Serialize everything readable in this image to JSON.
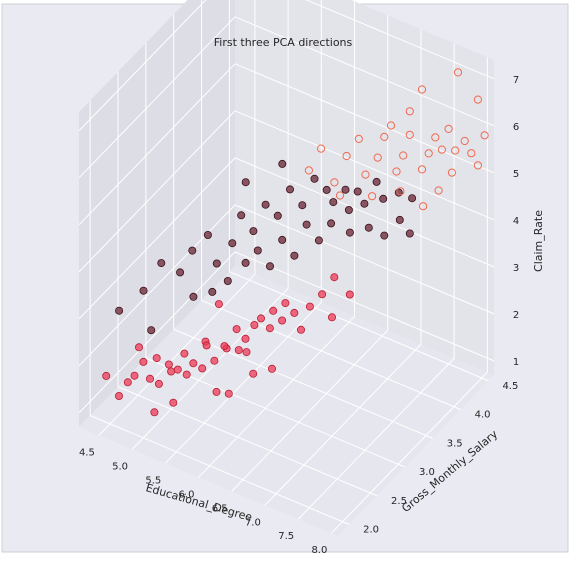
{
  "chart_data": {
    "type": "scatter",
    "title": "First three PCA directions",
    "xlabel": "Educational_Degree",
    "ylabel": "Gross_Monthly_Salary",
    "zlabel": "Claim_Rate",
    "xticks": [
      "4.5",
      "5.0",
      "5.5",
      "6.0",
      "6.5",
      "7.0",
      "7.5",
      "8.0"
    ],
    "yticks": [
      "2.0",
      "2.5",
      "3.0",
      "3.5",
      "4.0",
      "4.5"
    ],
    "zticks": [
      "1",
      "2",
      "3",
      "4",
      "5",
      "6",
      "7"
    ],
    "xlim": [
      4.2,
      8.1
    ],
    "ylim": [
      1.8,
      4.6
    ],
    "zlim": [
      0.7,
      7.4
    ],
    "grid": true,
    "colors": {
      "background": "#eaeaf2",
      "pane_back": "#e3e3ea",
      "pane_side": "#dddde5",
      "pane_floor": "#e6e6ee",
      "grid": "#ffffff",
      "red_fill": "#ee3a55",
      "red_edge": "#b81e34",
      "dark_fill": "#6e2b3a",
      "dark_edge": "#3a1018",
      "hollow_edge": "#f06a4f"
    },
    "series": [
      {
        "style": "red-filled",
        "points": [
          [
            4.4,
            2.05,
            1.6
          ],
          [
            4.55,
            2.1,
            1.2
          ],
          [
            4.6,
            2.2,
            1.4
          ],
          [
            4.7,
            2.2,
            1.6
          ],
          [
            4.75,
            2.3,
            1.8
          ],
          [
            4.85,
            2.3,
            1.5
          ],
          [
            4.9,
            2.4,
            1.3
          ],
          [
            4.95,
            2.3,
            2.0
          ],
          [
            5.0,
            2.5,
            1.5
          ],
          [
            5.05,
            2.4,
            1.8
          ],
          [
            5.1,
            2.5,
            1.6
          ],
          [
            5.15,
            2.6,
            1.4
          ],
          [
            5.2,
            2.5,
            2.0
          ],
          [
            5.25,
            2.6,
            1.7
          ],
          [
            5.3,
            2.7,
            1.5
          ],
          [
            5.35,
            2.7,
            2.1
          ],
          [
            5.4,
            2.8,
            1.6
          ],
          [
            5.45,
            2.6,
            2.2
          ],
          [
            5.5,
            2.9,
            1.8
          ],
          [
            5.55,
            2.8,
            2.0
          ],
          [
            5.6,
            3.0,
            1.7
          ],
          [
            5.65,
            2.9,
            2.3
          ],
          [
            5.7,
            3.0,
            2.0
          ],
          [
            5.75,
            3.1,
            2.2
          ],
          [
            5.8,
            2.9,
            1.9
          ],
          [
            5.85,
            3.1,
            2.4
          ],
          [
            5.9,
            3.2,
            2.1
          ],
          [
            5.95,
            3.2,
            2.5
          ],
          [
            6.0,
            3.3,
            2.2
          ],
          [
            6.05,
            3.3,
            2.6
          ],
          [
            6.1,
            3.4,
            2.3
          ],
          [
            6.2,
            3.4,
            2.0
          ],
          [
            6.25,
            3.5,
            2.4
          ],
          [
            6.35,
            3.6,
            2.6
          ],
          [
            6.45,
            3.7,
            2.9
          ],
          [
            6.5,
            3.6,
            2.2
          ],
          [
            6.6,
            3.8,
            2.5
          ],
          [
            5.0,
            2.2,
            1.0
          ],
          [
            5.2,
            2.3,
            1.2
          ],
          [
            5.6,
            2.6,
            1.3
          ],
          [
            5.7,
            2.7,
            1.2
          ],
          [
            5.9,
            2.9,
            1.5
          ],
          [
            6.1,
            3.0,
            1.6
          ],
          [
            4.6,
            2.4,
            1.9
          ],
          [
            5.3,
            3.0,
            2.5
          ]
        ]
      },
      {
        "style": "dark-filled",
        "points": [
          [
            4.3,
            2.4,
            2.5
          ],
          [
            4.5,
            2.6,
            2.8
          ],
          [
            4.6,
            2.8,
            3.2
          ],
          [
            4.7,
            2.5,
            2.2
          ],
          [
            4.8,
            2.9,
            3.0
          ],
          [
            4.9,
            3.0,
            3.4
          ],
          [
            5.0,
            2.9,
            2.6
          ],
          [
            5.05,
            3.1,
            3.7
          ],
          [
            5.1,
            3.2,
            3.0
          ],
          [
            5.2,
            3.0,
            2.7
          ],
          [
            5.25,
            3.3,
            3.4
          ],
          [
            5.3,
            3.4,
            3.9
          ],
          [
            5.35,
            3.1,
            2.9
          ],
          [
            5.4,
            3.5,
            3.5
          ],
          [
            5.45,
            3.3,
            3.1
          ],
          [
            5.5,
            3.6,
            4.0
          ],
          [
            5.55,
            3.4,
            3.3
          ],
          [
            5.6,
            3.7,
            3.7
          ],
          [
            5.65,
            3.5,
            2.9
          ],
          [
            5.7,
            3.8,
            4.2
          ],
          [
            5.75,
            3.6,
            3.4
          ],
          [
            5.8,
            3.9,
            3.8
          ],
          [
            5.85,
            3.7,
            3.0
          ],
          [
            5.9,
            4.0,
            4.3
          ],
          [
            5.95,
            3.8,
            3.6
          ],
          [
            6.0,
            4.1,
            4.0
          ],
          [
            6.05,
            3.9,
            3.2
          ],
          [
            6.1,
            4.1,
            3.8
          ],
          [
            6.15,
            4.0,
            3.5
          ],
          [
            6.2,
            4.2,
            4.0
          ],
          [
            6.25,
            4.2,
            3.6
          ],
          [
            6.3,
            4.3,
            3.9
          ],
          [
            6.35,
            4.1,
            3.3
          ],
          [
            6.4,
            4.3,
            3.7
          ],
          [
            6.5,
            4.4,
            4.1
          ],
          [
            6.55,
            4.2,
            3.4
          ],
          [
            6.6,
            4.4,
            3.8
          ],
          [
            6.7,
            4.3,
            3.2
          ],
          [
            6.75,
            4.5,
            3.9
          ],
          [
            6.85,
            4.4,
            3.5
          ],
          [
            6.95,
            4.5,
            3.9
          ],
          [
            7.0,
            4.4,
            3.3
          ],
          [
            5.2,
            3.6,
            4.3
          ],
          [
            5.5,
            3.9,
            4.5
          ]
        ]
      },
      {
        "style": "hollow",
        "points": [
          [
            5.9,
            3.9,
            4.6
          ],
          [
            6.0,
            4.0,
            5.0
          ],
          [
            6.2,
            4.0,
            4.4
          ],
          [
            6.3,
            4.1,
            4.9
          ],
          [
            6.4,
            4.2,
            5.2
          ],
          [
            6.5,
            4.2,
            4.5
          ],
          [
            6.6,
            4.3,
            4.8
          ],
          [
            6.7,
            4.3,
            5.3
          ],
          [
            6.8,
            4.3,
            5.6
          ],
          [
            6.8,
            4.4,
            4.5
          ],
          [
            6.9,
            4.4,
            4.9
          ],
          [
            7.0,
            4.4,
            5.4
          ],
          [
            7.0,
            4.4,
            5.9
          ],
          [
            7.1,
            4.5,
            4.6
          ],
          [
            7.2,
            4.5,
            5.0
          ],
          [
            7.3,
            4.5,
            5.4
          ],
          [
            7.35,
            4.5,
            4.3
          ],
          [
            7.4,
            4.5,
            5.2
          ],
          [
            7.5,
            4.5,
            5.7
          ],
          [
            7.55,
            4.5,
            4.8
          ],
          [
            7.6,
            4.5,
            5.3
          ],
          [
            7.7,
            4.55,
            5.5
          ],
          [
            7.8,
            4.55,
            5.3
          ],
          [
            7.9,
            4.55,
            5.1
          ],
          [
            8.0,
            4.55,
            5.8
          ],
          [
            7.1,
            4.5,
            6.3
          ],
          [
            7.6,
            4.55,
            6.9
          ],
          [
            7.9,
            4.55,
            6.5
          ],
          [
            6.2,
            4.1,
            4.0
          ],
          [
            6.6,
            4.2,
            4.1
          ],
          [
            6.9,
            4.35,
            4.2
          ],
          [
            7.2,
            4.4,
            4.0
          ]
        ]
      }
    ]
  }
}
